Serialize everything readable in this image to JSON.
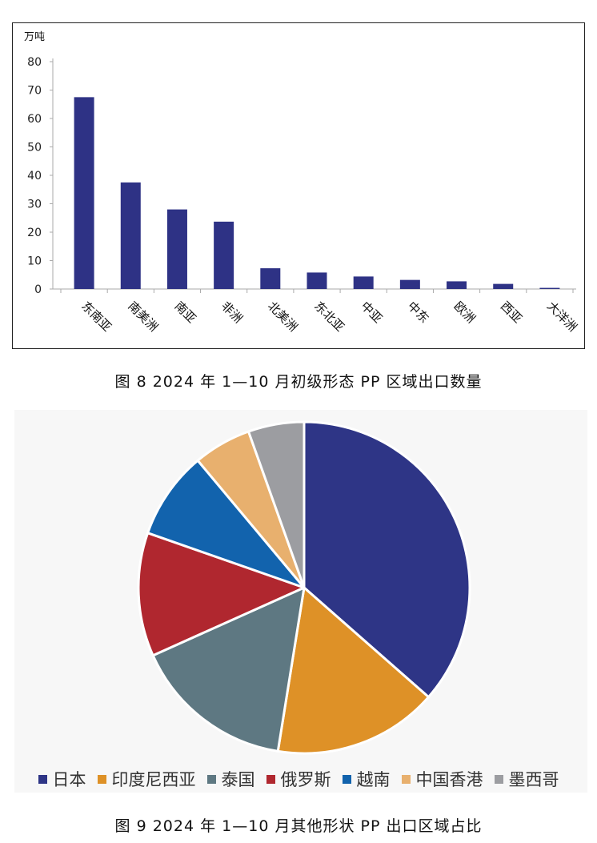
{
  "chart_data": [
    {
      "type": "bar",
      "ylabel": "万吨",
      "ylim": [
        0,
        80
      ],
      "yticks": [
        0,
        10,
        20,
        30,
        40,
        50,
        60,
        70,
        80
      ],
      "categories": [
        "东南亚",
        "南美洲",
        "南亚",
        "非洲",
        "北美洲",
        "东北亚",
        "中亚",
        "中东",
        "欧洲",
        "西亚",
        "大洋洲"
      ],
      "values": [
        67.5,
        37.5,
        28,
        23.7,
        7.3,
        5.8,
        4.4,
        3.2,
        2.7,
        1.8,
        0.4
      ],
      "color": "#2e3285",
      "grid": false
    },
    {
      "type": "pie",
      "labels": [
        "日本",
        "印度尼西亚",
        "泰国",
        "俄罗斯",
        "越南",
        "中国香港",
        "墨西哥"
      ],
      "values": [
        37.5,
        16.5,
        16.2,
        12.4,
        8.8,
        5.8,
        5.6
      ],
      "colors": [
        "#2e3586",
        "#de9127",
        "#5e7882",
        "#b0272f",
        "#1263ad",
        "#e8b06e",
        "#9c9da1"
      ],
      "legend_position": "bottom"
    }
  ],
  "captions": {
    "bar": "图 8  2024 年 1—10 月初级形态 PP 区域出口数量",
    "pie": "图 9  2024 年 1—10 月其他形状 PP 出口区域占比"
  }
}
